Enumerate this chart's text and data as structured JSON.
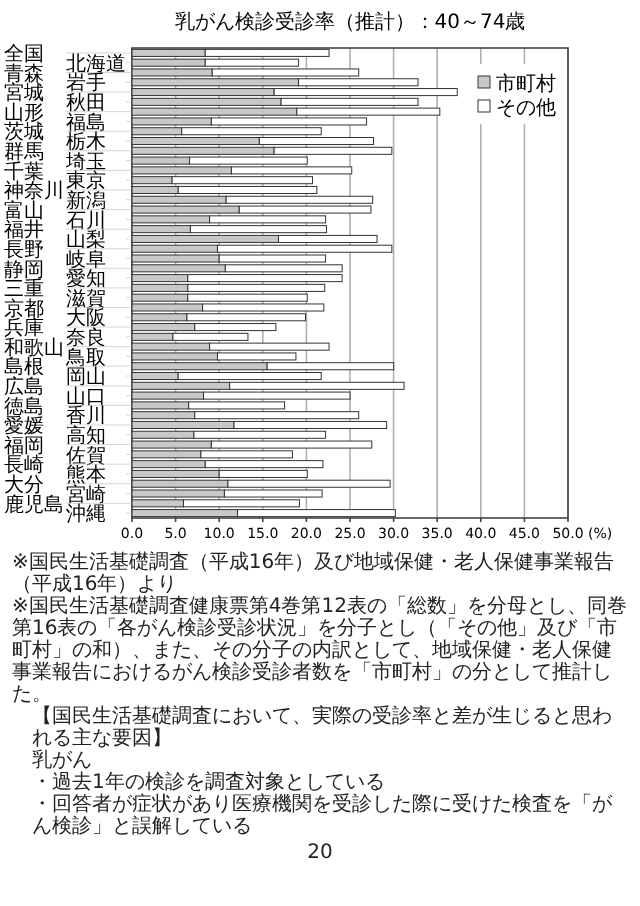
{
  "chart_data": {
    "type": "bar",
    "orientation": "horizontal",
    "stacked": true,
    "title": "乳がん検診受診率（推計）：40～74歳",
    "categories": [
      "全国",
      "北海道",
      "青森",
      "岩手",
      "宮城",
      "秋田",
      "山形",
      "福島",
      "茨城",
      "栃木",
      "群馬",
      "埼玉",
      "千葉",
      "東京",
      "神奈川",
      "新潟",
      "富山",
      "石川",
      "福井",
      "山梨",
      "長野",
      "岐阜",
      "静岡",
      "愛知",
      "三重",
      "滋賀",
      "京都",
      "大阪",
      "兵庫",
      "奈良",
      "和歌山",
      "鳥取",
      "島根",
      "岡山",
      "広島",
      "山口",
      "徳島",
      "香川",
      "愛媛",
      "高知",
      "福岡",
      "佐賀",
      "長崎",
      "熊本",
      "大分",
      "宮崎",
      "鹿児島",
      "沖縄"
    ],
    "series": [
      {
        "name": "市町村",
        "color": "#c8c8c8",
        "values": [
          8.4,
          8.4,
          9.2,
          19.1,
          16.3,
          17.1,
          18.9,
          9.1,
          5.7,
          14.6,
          16.3,
          6.6,
          11.4,
          4.6,
          5.3,
          10.8,
          12.3,
          8.9,
          6.7,
          16.8,
          9.8,
          10.0,
          10.7,
          6.4,
          6.4,
          6.4,
          8.1,
          6.3,
          7.2,
          4.7,
          8.9,
          9.8,
          15.5,
          5.3,
          11.2,
          8.2,
          6.5,
          7.2,
          11.7,
          7.1,
          9.1,
          7.9,
          8.4,
          10.0,
          11.0,
          10.6,
          5.9,
          12.1
        ]
      },
      {
        "name": "その他",
        "color": "#ffffff",
        "values": [
          14.2,
          10.7,
          16.8,
          13.7,
          21.0,
          15.7,
          16.4,
          17.8,
          16.0,
          13.1,
          13.5,
          13.5,
          13.8,
          16.1,
          15.9,
          16.8,
          15.1,
          13.3,
          15.6,
          11.3,
          20.0,
          12.2,
          13.4,
          17.7,
          15.7,
          13.7,
          13.9,
          13.6,
          9.3,
          8.6,
          13.7,
          9.0,
          14.5,
          16.4,
          20.0,
          16.8,
          11.0,
          18.8,
          17.5,
          15.1,
          18.4,
          10.5,
          13.5,
          10.1,
          18.6,
          11.2,
          13.3,
          18.1
        ]
      }
    ],
    "xlim": [
      0,
      50
    ],
    "xticks": [
      {
        "value": 0,
        "label": "0.0"
      },
      {
        "value": 5,
        "label": "5.0"
      },
      {
        "value": 10,
        "label": "10.0"
      },
      {
        "value": 15,
        "label": "15.0"
      },
      {
        "value": 20,
        "label": "20.0"
      },
      {
        "value": 25,
        "label": "25.0"
      },
      {
        "value": 30,
        "label": "30.0"
      },
      {
        "value": 35,
        "label": "35.0"
      },
      {
        "value": 40,
        "label": "40.0"
      },
      {
        "value": 45,
        "label": "45.0"
      },
      {
        "value": 50,
        "label": "50.0"
      }
    ],
    "xlabel": "(%)",
    "grid": "x",
    "legend": "top right",
    "annotations": [
      "※国民生活基礎調査（平成16年）及び地域保健・老人保健事業報告（平成16年）より",
      "※国民生活基礎調査健康票第4巻第12表の「総数」を分母とし、同巻第16表の「各がん検診受診状況」を分子とし（「その他」及び「市町村」の和）、また、その分子の内訳として、地域保健・老人保健事業報告におけるがん検診受診者数を「市町村」の分として推計した。",
      "【国民生活基礎調査において、実際の受診率と差が生じると思われる主な要因】",
      "乳がん",
      "・過去1年の検診を調査対象としている",
      "・回答者が症状があり医療機関を受診した際に受けた検査を「がん検診」と誤解している",
      "20"
    ]
  }
}
